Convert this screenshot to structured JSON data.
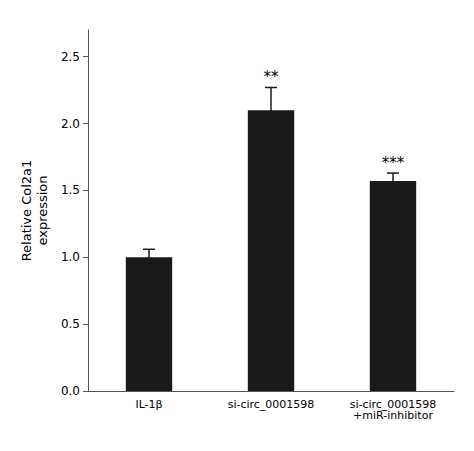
{
  "chart_data": {
    "type": "bar",
    "categories": [
      "IL-1β",
      "si-circ_0001598",
      "si-circ_0001598\n+miR-inhibitor"
    ],
    "values": [
      1.0,
      2.1,
      1.57
    ],
    "errors": [
      0.06,
      0.17,
      0.06
    ],
    "color": "#1a1a1a",
    "ylabel": "Relative Col2a1\nexpression",
    "ylim": [
      0,
      2.7
    ],
    "yticks": [
      {
        "value": 0.0,
        "label": "0.0"
      },
      {
        "value": 0.5,
        "label": "0.5"
      },
      {
        "value": 1.0,
        "label": "1.0"
      },
      {
        "value": 1.5,
        "label": "1.5"
      },
      {
        "value": 2.0,
        "label": "2.0"
      },
      {
        "value": 2.5,
        "label": "2.5"
      }
    ],
    "annotations": [
      {
        "category": "si-circ_0001598",
        "text": "**"
      },
      {
        "category": "si-circ_0001598\n+miR-inhibitor",
        "text": "***"
      }
    ],
    "grid": false
  }
}
